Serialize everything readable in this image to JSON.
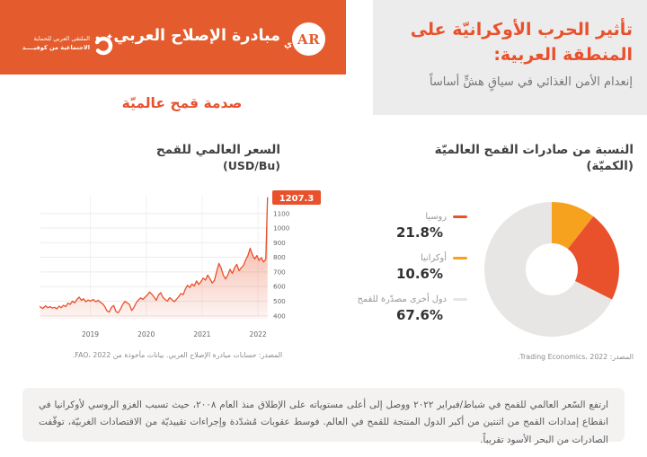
{
  "accent_color": "#E8512B",
  "header_color": "#E45C2D",
  "header": {
    "brand": "مبادرة الإصلاح العربي",
    "logo_ar": "AR",
    "logo_tail": "ي",
    "forum_line1": "الملتقى العربي للحماية",
    "forum_line2": "الاجتماعية من كوفيــــد"
  },
  "title_block": {
    "title_line1": "تأثير الحرب الأوكرانيّة على",
    "title_line2": "المنطقة العربية:",
    "subtitle": "إنعدام الأمن الغذائي في سياقٍ هشٍّ أساساً"
  },
  "section_heading": "صدمة قمح عالميّة",
  "price_chart": {
    "title": "السعر العالمي للقمح",
    "unit": "(USD/Bu)",
    "badge": "1207.3",
    "source": "المصدر: حسابات مبادرة الإصلاح العربي. بيانات مأخوذة من FAO، 2022."
  },
  "pie_section": {
    "title_line1": "النسبة من صادرات القمح العالميّة",
    "title_line2": "(الكميّة)",
    "source": "المصدر: Trading Economics، 2022."
  },
  "chart_data": [
    {
      "type": "line",
      "title": "السعر العالمي للقمح (USD/Bu)",
      "ylabel": "USD/Bu",
      "x_ticks": [
        2019,
        2020,
        2021,
        2022
      ],
      "y_ticks": [
        400,
        500,
        600,
        700,
        800,
        900,
        1000,
        1100
      ],
      "xlim": [
        2018.1,
        2022.2
      ],
      "ylim": [
        380,
        1260
      ],
      "last_value": 1207.3,
      "line_color": "#E8512B",
      "points": [
        [
          2018.1,
          462
        ],
        [
          2018.15,
          450
        ],
        [
          2018.2,
          468
        ],
        [
          2018.24,
          455
        ],
        [
          2018.28,
          462
        ],
        [
          2018.32,
          452
        ],
        [
          2018.36,
          458
        ],
        [
          2018.4,
          448
        ],
        [
          2018.44,
          466
        ],
        [
          2018.48,
          455
        ],
        [
          2018.52,
          472
        ],
        [
          2018.56,
          462
        ],
        [
          2018.6,
          486
        ],
        [
          2018.64,
          478
        ],
        [
          2018.68,
          500
        ],
        [
          2018.72,
          488
        ],
        [
          2018.76,
          512
        ],
        [
          2018.8,
          528
        ],
        [
          2018.84,
          506
        ],
        [
          2018.88,
          516
        ],
        [
          2018.92,
          496
        ],
        [
          2018.96,
          508
        ],
        [
          2019.0,
          500
        ],
        [
          2019.05,
          512
        ],
        [
          2019.1,
          496
        ],
        [
          2019.14,
          506
        ],
        [
          2019.18,
          492
        ],
        [
          2019.22,
          482
        ],
        [
          2019.26,
          462
        ],
        [
          2019.3,
          432
        ],
        [
          2019.34,
          426
        ],
        [
          2019.38,
          458
        ],
        [
          2019.42,
          470
        ],
        [
          2019.46,
          428
        ],
        [
          2019.5,
          421
        ],
        [
          2019.54,
          446
        ],
        [
          2019.58,
          478
        ],
        [
          2019.62,
          498
        ],
        [
          2019.66,
          488
        ],
        [
          2019.7,
          478
        ],
        [
          2019.74,
          436
        ],
        [
          2019.78,
          456
        ],
        [
          2019.82,
          488
        ],
        [
          2019.86,
          508
        ],
        [
          2019.9,
          522
        ],
        [
          2019.94,
          512
        ],
        [
          2019.98,
          528
        ],
        [
          2020.02,
          542
        ],
        [
          2020.06,
          562
        ],
        [
          2020.1,
          548
        ],
        [
          2020.14,
          528
        ],
        [
          2020.18,
          506
        ],
        [
          2020.22,
          542
        ],
        [
          2020.26,
          558
        ],
        [
          2020.3,
          524
        ],
        [
          2020.34,
          512
        ],
        [
          2020.38,
          500
        ],
        [
          2020.42,
          524
        ],
        [
          2020.46,
          512
        ],
        [
          2020.5,
          496
        ],
        [
          2020.54,
          512
        ],
        [
          2020.58,
          530
        ],
        [
          2020.62,
          552
        ],
        [
          2020.66,
          544
        ],
        [
          2020.7,
          582
        ],
        [
          2020.74,
          608
        ],
        [
          2020.78,
          594
        ],
        [
          2020.82,
          618
        ],
        [
          2020.86,
          604
        ],
        [
          2020.9,
          638
        ],
        [
          2020.94,
          614
        ],
        [
          2020.98,
          634
        ],
        [
          2021.02,
          658
        ],
        [
          2021.06,
          644
        ],
        [
          2021.1,
          678
        ],
        [
          2021.14,
          654
        ],
        [
          2021.18,
          624
        ],
        [
          2021.22,
          642
        ],
        [
          2021.26,
          702
        ],
        [
          2021.3,
          758
        ],
        [
          2021.34,
          728
        ],
        [
          2021.38,
          678
        ],
        [
          2021.42,
          652
        ],
        [
          2021.46,
          678
        ],
        [
          2021.5,
          718
        ],
        [
          2021.54,
          690
        ],
        [
          2021.58,
          728
        ],
        [
          2021.62,
          752
        ],
        [
          2021.66,
          708
        ],
        [
          2021.7,
          728
        ],
        [
          2021.74,
          744
        ],
        [
          2021.78,
          782
        ],
        [
          2021.82,
          812
        ],
        [
          2021.86,
          862
        ],
        [
          2021.9,
          818
        ],
        [
          2021.94,
          788
        ],
        [
          2021.98,
          812
        ],
        [
          2022.02,
          778
        ],
        [
          2022.06,
          798
        ],
        [
          2022.1,
          768
        ],
        [
          2022.14,
          788
        ],
        [
          2022.17,
          1207.3
        ]
      ]
    },
    {
      "type": "pie",
      "title": "النسبة من صادرات القمح العالميّة (الكميّة)",
      "donut": true,
      "slices": [
        {
          "label": "روسيا",
          "pct": "21.8%",
          "value": 21.8,
          "color": "#E8512B"
        },
        {
          "label": "أوكرانيا",
          "pct": "10.6%",
          "value": 10.6,
          "color": "#F6A21E"
        },
        {
          "label": "دول أخرى مصدّرة للقمح",
          "pct": "67.6%",
          "value": 67.6,
          "color": "#E7E6E4"
        }
      ],
      "draw_order": [
        1,
        0,
        2
      ]
    }
  ],
  "note": "ارتفع السّعر العالمي للقمح في شباط/فبراير ٢٠٢٢ ووصل إلى أعلى مستوياته على الإطلاق منذ العام ٢٠٠٨، حيث تسبب الغزو الروسي لأوكرانيا في انقطاع إمدادات القمح من اثنتين من أكبر الدول المنتجة للقمح في العالم. فوسط عقوبات مُشدّدة وإجراءات تقييديّة من الاقتصادات الغربيّة، توقّفت الصادرات من البحر الأسود تقريباً."
}
